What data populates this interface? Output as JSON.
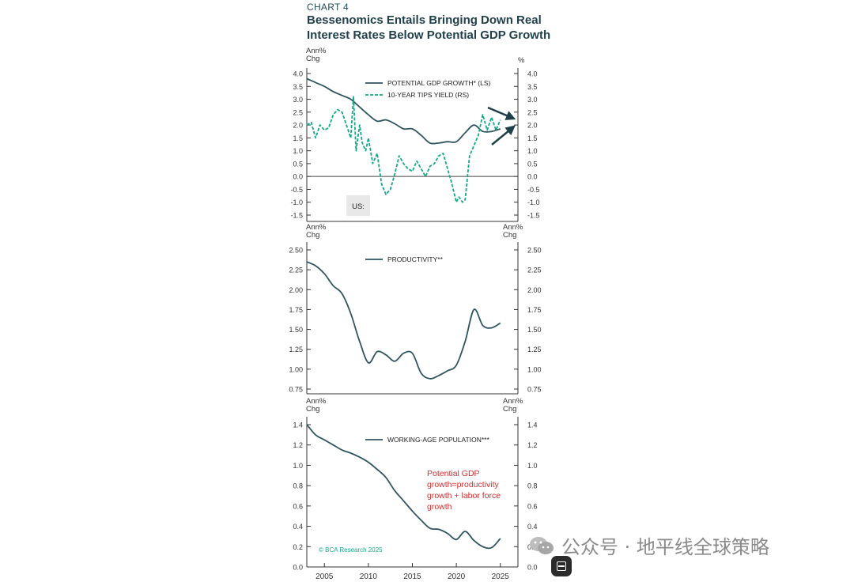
{
  "header": {
    "label": "CHART 4",
    "title_line1": "Bessenomics Entails Bringing Down Real",
    "title_line2": "Interest Rates Below Potential GDP Growth"
  },
  "colors": {
    "main_line": "#2f5561",
    "tips_line": "#17a88b",
    "annotation": "#d32f2f",
    "arrow": "#1f3f4a"
  },
  "chart_data": [
    {
      "type": "line",
      "panel": "top",
      "left_axis_label": [
        "Ann%",
        "Chg"
      ],
      "right_axis_label": [
        "%"
      ],
      "ylim": [
        -1.5,
        4.0
      ],
      "yticks": [
        "4.0",
        "3.5",
        "3.0",
        "2.5",
        "2.0",
        "1.5",
        "1.0",
        "0.5",
        "0.0",
        "-0.5",
        "-1.0",
        "-1.5"
      ],
      "ytick_values": [
        4.0,
        3.5,
        3.0,
        2.5,
        2.0,
        1.5,
        1.0,
        0.5,
        0.0,
        -0.5,
        -1.0,
        -1.5
      ],
      "xlim": [
        2003,
        2027
      ],
      "zero_line": true,
      "legend_placement": "top-center",
      "badge": "US:",
      "series": [
        {
          "name": "POTENTIAL GDP GROWTH* (LS)",
          "style": "solid",
          "x": [
            2003,
            2004,
            2005,
            2006,
            2007,
            2008,
            2009,
            2010,
            2011,
            2012,
            2013,
            2014,
            2015,
            2016,
            2017,
            2018,
            2019,
            2020,
            2021,
            2022,
            2023,
            2024,
            2025
          ],
          "y": [
            3.8,
            3.65,
            3.5,
            3.3,
            3.15,
            3.0,
            2.7,
            2.4,
            2.15,
            2.2,
            2.05,
            1.85,
            1.85,
            1.6,
            1.3,
            1.3,
            1.35,
            1.35,
            1.7,
            2.0,
            1.75,
            1.75,
            1.85
          ]
        },
        {
          "name": "10-YEAR TIPS YIELD (RS)",
          "style": "dashed",
          "x": [
            2003,
            2003.5,
            2004,
            2004.5,
            2005,
            2005.5,
            2006,
            2006.5,
            2007,
            2007.5,
            2008,
            2008.3,
            2008.6,
            2009,
            2009.3,
            2009.7,
            2010,
            2010.5,
            2011,
            2011.5,
            2012,
            2012.5,
            2013,
            2013.5,
            2014,
            2014.5,
            2015,
            2015.5,
            2016,
            2016.5,
            2017,
            2017.5,
            2018,
            2018.5,
            2019,
            2019.5,
            2020,
            2020.3,
            2020.7,
            2021,
            2021.5,
            2022,
            2022.5,
            2023,
            2023.5,
            2024,
            2024.5,
            2025
          ],
          "y": [
            2.0,
            2.1,
            1.5,
            2.0,
            1.8,
            1.9,
            2.4,
            2.6,
            2.5,
            2.0,
            1.5,
            3.1,
            1.0,
            2.0,
            1.3,
            1.0,
            1.5,
            0.5,
            0.9,
            -0.3,
            -0.7,
            -0.5,
            0.1,
            0.8,
            0.5,
            0.3,
            0.2,
            0.6,
            0.3,
            0.0,
            0.4,
            0.5,
            0.8,
            0.9,
            0.3,
            -0.3,
            -1.0,
            -0.8,
            -1.0,
            -0.9,
            0.8,
            1.2,
            1.6,
            2.4,
            1.8,
            2.3,
            1.8,
            2.2
          ]
        }
      ]
    },
    {
      "type": "line",
      "panel": "middle",
      "left_axis_label": [
        "Ann%",
        "Chg"
      ],
      "right_axis_label": [
        "Ann%",
        "Chg"
      ],
      "ylim": [
        0.75,
        2.5
      ],
      "yticks": [
        "2.50",
        "2.25",
        "2.00",
        "1.75",
        "1.50",
        "1.25",
        "1.00",
        "0.75"
      ],
      "ytick_values": [
        2.5,
        2.25,
        2.0,
        1.75,
        1.5,
        1.25,
        1.0,
        0.75
      ],
      "xlim": [
        2003,
        2027
      ],
      "legend_placement": "top-center",
      "series": [
        {
          "name": "PRODUCTIVITY**",
          "style": "solid",
          "x": [
            2003,
            2004,
            2005,
            2006,
            2007,
            2008,
            2009,
            2010,
            2011,
            2012,
            2013,
            2014,
            2015,
            2016,
            2017,
            2018,
            2019,
            2020,
            2021,
            2022,
            2023,
            2024,
            2025
          ],
          "y": [
            2.35,
            2.3,
            2.2,
            2.05,
            1.95,
            1.7,
            1.35,
            1.08,
            1.22,
            1.18,
            1.1,
            1.2,
            1.2,
            0.95,
            0.88,
            0.92,
            0.98,
            1.05,
            1.35,
            1.75,
            1.55,
            1.52,
            1.58
          ]
        }
      ]
    },
    {
      "type": "line",
      "panel": "bottom",
      "left_axis_label": [
        "Ann%",
        "Chg"
      ],
      "right_axis_label": [
        "Ann%",
        "Chg"
      ],
      "ylim": [
        0.0,
        1.4
      ],
      "yticks": [
        "1.4",
        "1.2",
        "1.0",
        "0.8",
        "0.6",
        "0.4",
        "0.2",
        "0.0"
      ],
      "ytick_values": [
        1.4,
        1.2,
        1.0,
        0.8,
        0.6,
        0.4,
        0.2,
        0.0
      ],
      "xlim": [
        2003,
        2027
      ],
      "xticks": [
        "2005",
        "2010",
        "2015",
        "2020",
        "2025"
      ],
      "xtick_values": [
        2005,
        2010,
        2015,
        2020,
        2025
      ],
      "legend_placement": "top-center",
      "annotation": [
        "Potential GDP",
        "growth=productivity",
        "growth + labor force",
        "growth"
      ],
      "credit": "© BCA Research 2025",
      "series": [
        {
          "name": "WORKING-AGE POPULATION***",
          "style": "solid",
          "x": [
            2003,
            2004,
            2005,
            2006,
            2007,
            2008,
            2009,
            2010,
            2011,
            2012,
            2013,
            2014,
            2015,
            2016,
            2017,
            2018,
            2019,
            2020,
            2021,
            2022,
            2023,
            2024,
            2025
          ],
          "y": [
            1.4,
            1.3,
            1.25,
            1.2,
            1.15,
            1.12,
            1.08,
            1.03,
            0.96,
            0.88,
            0.75,
            0.65,
            0.55,
            0.46,
            0.38,
            0.37,
            0.33,
            0.27,
            0.35,
            0.26,
            0.2,
            0.19,
            0.28
          ]
        }
      ]
    }
  ],
  "watermark": {
    "text": "公众号 · 地平线全球策略"
  }
}
